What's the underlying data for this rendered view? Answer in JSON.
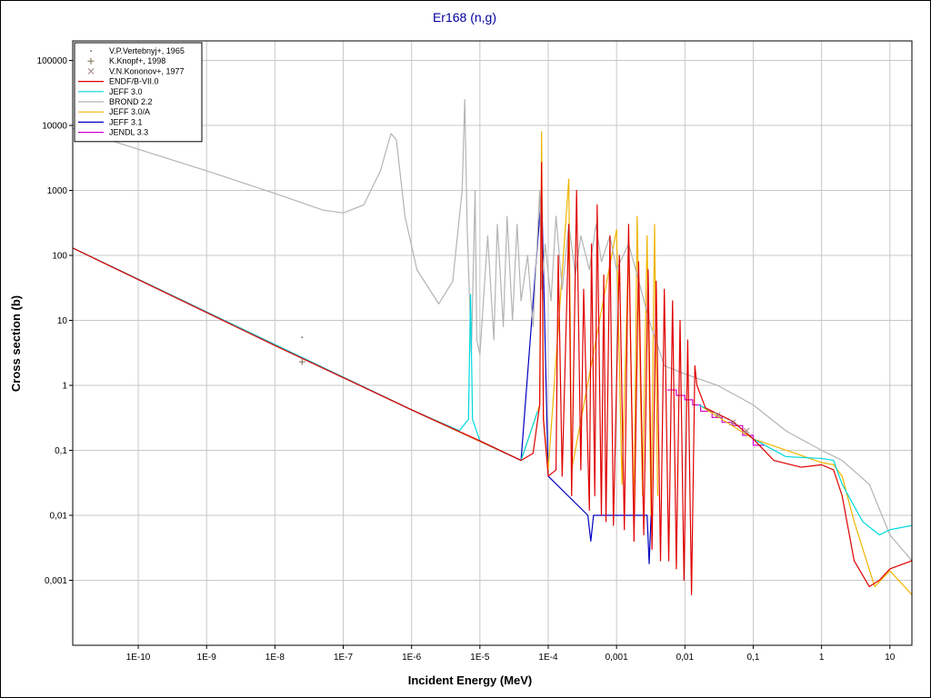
{
  "chart_data": {
    "type": "line",
    "title": "Er168 (n,g)",
    "xlabel": "Incident Energy (MeV)",
    "ylabel": "Cross section (b)",
    "xscale": "log",
    "yscale": "log",
    "grid": true,
    "legend": "upper left",
    "xlim": [
      1.1e-11,
      21
    ],
    "ylim": [
      0.0001,
      200000
    ],
    "xticks": [
      {
        "value": 1e-10,
        "label": "1E-10"
      },
      {
        "value": 1e-09,
        "label": "1E-9"
      },
      {
        "value": 1e-08,
        "label": "1E-8"
      },
      {
        "value": 1e-07,
        "label": "1E-7"
      },
      {
        "value": 1e-06,
        "label": "1E-6"
      },
      {
        "value": 1e-05,
        "label": "1E-5"
      },
      {
        "value": 0.0001,
        "label": "1E-4"
      },
      {
        "value": 0.001,
        "label": "0,001"
      },
      {
        "value": 0.01,
        "label": "0,01"
      },
      {
        "value": 0.1,
        "label": "0,1"
      },
      1,
      10
    ],
    "yticks": [
      {
        "value": 0.001,
        "label": "0,001"
      },
      {
        "value": 0.01,
        "label": "0,01"
      },
      {
        "value": 0.1,
        "label": "0,1"
      },
      1,
      10,
      100,
      1000,
      10000,
      100000
    ],
    "series": [
      {
        "name": "V.P.Vertebnyj+, 1965",
        "type": "scatter",
        "marker": "dot",
        "color": "#808080",
        "x": [
          2.5e-08
        ],
        "values": [
          5.5
        ]
      },
      {
        "name": "K.Knopf+, 1998",
        "type": "scatter",
        "marker": "plus",
        "color": "#7a6a50",
        "x": [
          2.5e-08
        ],
        "values": [
          2.3
        ]
      },
      {
        "name": "V.N.Kononov+, 1977",
        "type": "scatter",
        "marker": "cross",
        "color": "#a08080",
        "x": [
          0.03,
          0.05,
          0.08
        ],
        "values": [
          0.35,
          0.27,
          0.2
        ]
      },
      {
        "name": "ENDF/B-VII.0",
        "type": "line",
        "color": "#e00000",
        "x": [
          1.1e-11,
          1e-08,
          1e-06,
          1e-05,
          4e-05,
          6e-05,
          7.5e-05,
          8e-05,
          8.5e-05,
          0.0001,
          0.00013,
          0.00014,
          0.00016,
          0.0002,
          0.00022,
          0.00026,
          0.0003,
          0.00033,
          0.0004,
          0.00043,
          0.00048,
          0.00052,
          0.0006,
          0.00065,
          0.0007,
          0.0008,
          0.0009,
          0.0011,
          0.0013,
          0.0015,
          0.0018,
          0.0021,
          0.0025,
          0.0029,
          0.0033,
          0.0038,
          0.0044,
          0.005,
          0.0058,
          0.0066,
          0.0075,
          0.0085,
          0.0097,
          0.011,
          0.0125,
          0.014,
          0.015,
          0.02,
          0.05,
          0.1,
          0.2,
          0.5,
          1,
          1.5,
          2,
          3,
          5,
          7,
          10,
          21
        ],
        "values": [
          130,
          4.1,
          0.42,
          0.14,
          0.07,
          0.09,
          0.5,
          2700,
          0.3,
          0.04,
          0.05,
          100,
          0.04,
          300,
          0.02,
          1000,
          0.05,
          30,
          0.012,
          150,
          0.02,
          600,
          0.01,
          50,
          0.008,
          200,
          0.007,
          100,
          0.006,
          300,
          0.004,
          80,
          0.005,
          60,
          0.003,
          40,
          0.002,
          30,
          0.002,
          20,
          0.0015,
          10,
          0.001,
          5,
          0.0006,
          2,
          1,
          0.45,
          0.28,
          0.15,
          0.07,
          0.055,
          0.06,
          0.05,
          0.02,
          0.002,
          0.0008,
          0.001,
          0.0015,
          0.002
        ]
      },
      {
        "name": "JEFF 3.0",
        "type": "line",
        "color": "#00d8e0",
        "x": [
          1.1e-11,
          1e-06,
          5e-06,
          6.8e-06,
          7.3e-06,
          7.8e-06,
          1e-05,
          4e-05,
          7e-05,
          0.0001,
          0.016,
          0.05,
          0.1,
          0.3,
          1,
          1.5,
          2,
          4,
          7,
          10,
          21
        ],
        "values": [
          130,
          0.42,
          0.2,
          0.3,
          25,
          0.3,
          0.14,
          0.07,
          0.4,
          null,
          0.5,
          0.28,
          0.15,
          0.08,
          0.075,
          0.07,
          0.03,
          0.008,
          0.005,
          0.006,
          0.007
        ]
      },
      {
        "name": "BROND 2.2",
        "type": "line",
        "color": "#b4b4b4",
        "x": [
          1.1e-11,
          1e-09,
          1e-08,
          5e-08,
          1e-07,
          2e-07,
          3.5e-07,
          5e-07,
          6e-07,
          8e-07,
          1.2e-06,
          2.5e-06,
          4e-06,
          5.5e-06,
          6e-06,
          6.5e-06,
          7.5e-06,
          8.5e-06,
          9e-06,
          1e-05,
          1.3e-05,
          1.6e-05,
          1.8e-05,
          2.2e-05,
          2.5e-05,
          3e-05,
          3.5e-05,
          4e-05,
          5e-05,
          6e-05,
          7.5e-05,
          8e-05,
          9e-05,
          0.00011,
          0.00013,
          0.00016,
          0.0002,
          0.00025,
          0.0003,
          0.0004,
          0.0005,
          0.0006,
          0.0008,
          0.001,
          0.0015,
          0.002,
          0.003,
          0.005,
          0.01,
          0.03,
          0.1,
          0.3,
          1,
          2,
          5,
          10,
          21
        ],
        "values": [
          9000,
          2000,
          900,
          500,
          450,
          600,
          2000,
          7500,
          6000,
          400,
          60,
          18,
          40,
          1000,
          25000,
          300,
          3,
          1000,
          5,
          3,
          200,
          5,
          300,
          8,
          400,
          10,
          300,
          20,
          100,
          8,
          1000,
          30,
          150,
          20,
          400,
          30,
          300,
          50,
          200,
          60,
          300,
          80,
          200,
          60,
          150,
          50,
          10,
          2,
          1.5,
          1,
          0.5,
          0.2,
          0.1,
          0.07,
          0.03,
          0.005,
          0.002
        ]
      },
      {
        "name": "JEFF 3.0/A",
        "type": "line",
        "color": "#f0b400",
        "x": [
          1.1e-11,
          1e-06,
          4e-05,
          7.5e-05,
          8e-05,
          8.5e-05,
          0.0001,
          0.0002,
          0.00022,
          0.001,
          0.0012,
          0.0015,
          0.0018,
          0.002,
          0.0024,
          0.0028,
          0.0032,
          0.0036,
          0.004,
          0.0045,
          0.016,
          0.1,
          1,
          1.5,
          2,
          3,
          6,
          10,
          21
        ],
        "values": [
          130,
          0.42,
          0.07,
          0.5,
          8000,
          0.3,
          0.05,
          1500,
          0.05,
          250,
          0.03,
          150,
          0.01,
          400,
          0.02,
          200,
          0.01,
          300,
          0.02,
          null,
          0.5,
          0.15,
          0.065,
          0.06,
          0.04,
          0.008,
          0.0008,
          0.0014,
          0.0006
        ]
      },
      {
        "name": "JEFF 3.1",
        "type": "line",
        "color": "#0000c0",
        "x": [
          1.1e-11,
          1e-06,
          4e-05,
          8e-05,
          0.0001,
          0.00038,
          0.00042,
          0.00046,
          0.0028,
          0.003,
          0.0032
        ],
        "values": [
          130,
          0.42,
          0.07,
          1000,
          0.04,
          0.01,
          0.004,
          0.01,
          0.01,
          0.0018,
          0.01
        ]
      },
      {
        "name": "JENDL 3.3",
        "type": "line",
        "color": "#d000d0",
        "x": [
          1.1e-11,
          1e-06,
          4e-05,
          5e-05,
          0.0055,
          0.0075,
          0.0075,
          0.01,
          0.01,
          0.013,
          0.013,
          0.017,
          0.017,
          0.025,
          0.025,
          0.035,
          0.035,
          0.05,
          0.05,
          0.07,
          0.07,
          0.1,
          0.1,
          0.15
        ],
        "values": [
          130,
          0.42,
          0.07,
          null,
          0.85,
          0.85,
          0.7,
          0.7,
          0.6,
          0.6,
          0.5,
          0.5,
          0.4,
          0.4,
          0.32,
          0.32,
          0.27,
          0.27,
          0.24,
          0.24,
          0.17,
          0.17,
          0.12,
          0.12
        ]
      }
    ]
  }
}
